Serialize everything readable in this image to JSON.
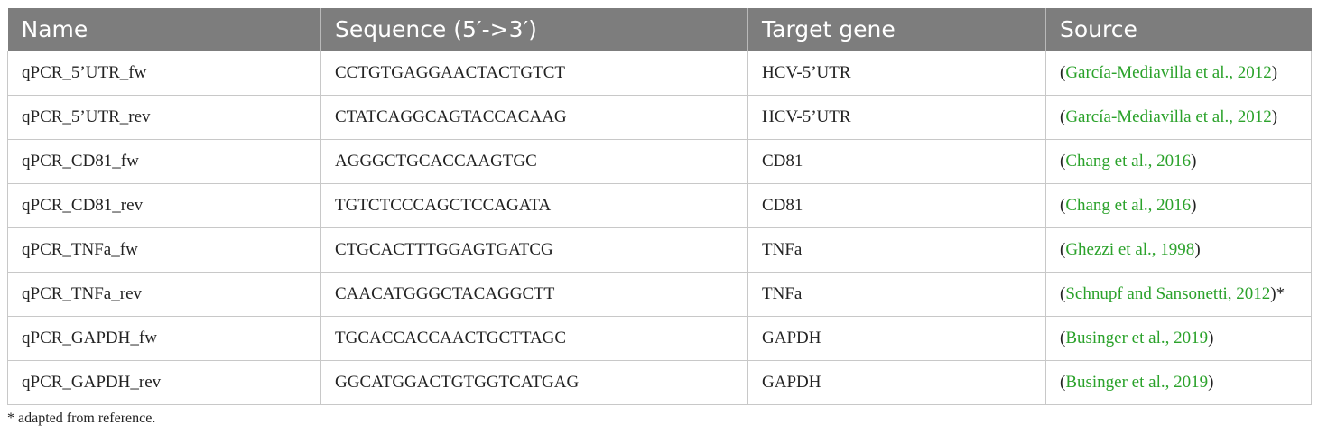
{
  "table": {
    "headers": [
      "Name",
      "Sequence (5′->3′)",
      "Target gene",
      "Source"
    ],
    "rows": [
      {
        "name": "qPCR_5’UTR_fw",
        "sequence": "CCTGTGAGGAACTACTGTCT",
        "target": "HCV-5’UTR",
        "source_open": "(",
        "source_cite": "García-Mediavilla et al., 2012",
        "source_close": ")"
      },
      {
        "name": "qPCR_5’UTR_rev",
        "sequence": "CTATCAGGCAGTACCACAAG",
        "target": "HCV-5’UTR",
        "source_open": "(",
        "source_cite": "García-Mediavilla et al., 2012",
        "source_close": ")"
      },
      {
        "name": "qPCR_CD81_fw",
        "sequence": "AGGGCTGCACCAAGTGC",
        "target": "CD81",
        "source_open": "(",
        "source_cite": "Chang et al., 2016",
        "source_close": ")"
      },
      {
        "name": "qPCR_CD81_rev",
        "sequence": "TGTCTCCCAGCTCCAGATA",
        "target": "CD81",
        "source_open": "(",
        "source_cite": "Chang et al., 2016",
        "source_close": ")"
      },
      {
        "name": "qPCR_TNFa_fw",
        "sequence": "CTGCACTTTGGAGTGATCG",
        "target": "TNFa",
        "source_open": "(",
        "source_cite": "Ghezzi et al., 1998",
        "source_close": ")"
      },
      {
        "name": "qPCR_TNFa_rev",
        "sequence": "CAACATGGGCTACAGGCTT",
        "target": "TNFa",
        "source_open": "(",
        "source_cite": "Schnupf and Sansonetti, 2012",
        "source_close": ")*"
      },
      {
        "name": "qPCR_GAPDH_fw",
        "sequence": "TGCACCACCAACTGCTTAGC",
        "target": "GAPDH",
        "source_open": "(",
        "source_cite": "Businger et al., 2019",
        "source_close": ")"
      },
      {
        "name": "qPCR_GAPDH_rev",
        "sequence": "GGCATGGACTGTGGTCATGAG",
        "target": "GAPDH",
        "source_open": "(",
        "source_cite": "Businger et al., 2019",
        "source_close": ")"
      }
    ]
  },
  "footnote": "* adapted from reference.",
  "colors": {
    "header_bg": "#7d7d7d",
    "header_text": "#ffffff",
    "citation": "#2ba22b",
    "border": "#c8c8c8"
  }
}
